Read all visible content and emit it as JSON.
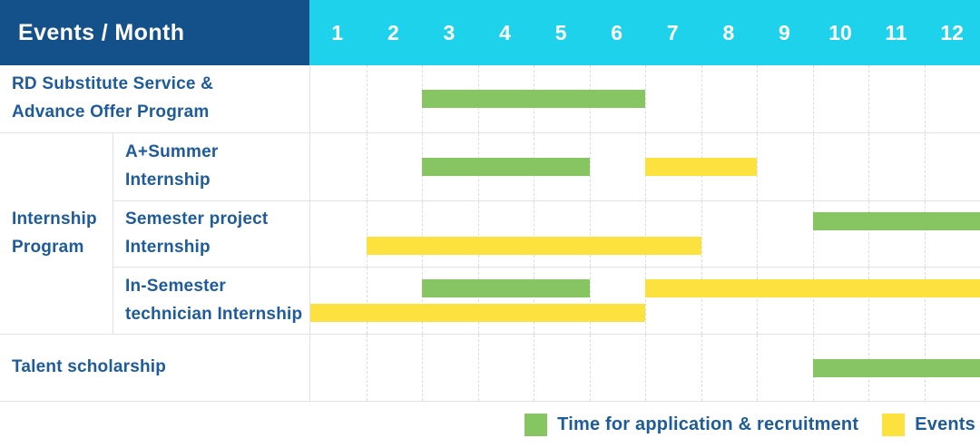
{
  "table": {
    "header": {
      "label": "Events / Month",
      "months": [
        "1",
        "2",
        "3",
        "4",
        "5",
        "6",
        "7",
        "8",
        "9",
        "10",
        "11",
        "12"
      ]
    },
    "rows": [
      {
        "id": "rd-substitute-service",
        "label_lines": [
          "RD Substitute Service &",
          "Advance Offer Program"
        ],
        "lines": [
          [
            {
              "type": "application",
              "start_month": 3,
              "end_month": 6
            }
          ]
        ]
      },
      {
        "id": "internship-program",
        "group_label_lines": [
          "Internship",
          "Program"
        ],
        "children": [
          {
            "id": "a-plus-summer-internship",
            "label_lines": [
              "A+Summer",
              "Internship"
            ],
            "lines": [
              [
                {
                  "type": "application",
                  "start_month": 3,
                  "end_month": 5
                },
                {
                  "type": "event",
                  "start_month": 7,
                  "end_month": 8
                }
              ]
            ]
          },
          {
            "id": "semester-project-internship",
            "label_lines": [
              "Semester project",
              "Internship"
            ],
            "lines": [
              [
                {
                  "type": "application",
                  "start_month": 10,
                  "end_month": 12
                }
              ],
              [
                {
                  "type": "event",
                  "start_month": 2,
                  "end_month": 7
                }
              ]
            ]
          },
          {
            "id": "in-semester-technician-internship",
            "label_lines": [
              "In-Semester",
              "technician Internship"
            ],
            "lines": [
              [
                {
                  "type": "application",
                  "start_month": 3,
                  "end_month": 5
                },
                {
                  "type": "event",
                  "start_month": 7,
                  "end_month": 12
                }
              ],
              [
                {
                  "type": "event",
                  "start_month": 1,
                  "end_month": 6
                }
              ]
            ]
          }
        ]
      },
      {
        "id": "talent-scholarship",
        "label_lines": [
          "Talent scholarship"
        ],
        "lines": [
          [
            {
              "type": "application",
              "start_month": 10,
              "end_month": 12
            }
          ]
        ]
      }
    ]
  },
  "legend": {
    "items": [
      {
        "type": "application",
        "label": "Time for application & recruitment",
        "color": "#87c563"
      },
      {
        "type": "event",
        "label": "Events",
        "color": "#fde23f"
      }
    ]
  },
  "colors": {
    "header_bg": "#14518a",
    "months_bg": "#1ed2ec",
    "header_text": "#ffffff",
    "label_text": "#1d5b9b",
    "grid_line": "#dcdcdc",
    "row_border": "#e2e2e2",
    "application": "#87c563",
    "event": "#fde23f"
  },
  "chart_data": {
    "type": "bar",
    "subtype": "gantt-timeline",
    "title": "Events / Month",
    "x": [
      1,
      2,
      3,
      4,
      5,
      6,
      7,
      8,
      9,
      10,
      11,
      12
    ],
    "xlabel": "Month",
    "xlim": [
      1,
      12
    ],
    "grid": true,
    "legend_position": "bottom-right",
    "legend": {
      "application": "Time for application & recruitment",
      "event": "Events"
    },
    "tasks": [
      {
        "name": "RD Substitute Service & Advance Offer Program",
        "group": null,
        "bars": [
          {
            "kind": "application",
            "from_month": 3,
            "to_month": 6
          }
        ]
      },
      {
        "name": "A+Summer Internship",
        "group": "Internship Program",
        "bars": [
          {
            "kind": "application",
            "from_month": 3,
            "to_month": 5
          },
          {
            "kind": "event",
            "from_month": 7,
            "to_month": 8
          }
        ]
      },
      {
        "name": "Semester project Internship",
        "group": "Internship Program",
        "bars": [
          {
            "kind": "application",
            "from_month": 10,
            "to_month": 12
          },
          {
            "kind": "event",
            "from_month": 2,
            "to_month": 7
          }
        ]
      },
      {
        "name": "In-Semester technician Internship",
        "group": "Internship Program",
        "bars": [
          {
            "kind": "application",
            "from_month": 3,
            "to_month": 5
          },
          {
            "kind": "event",
            "from_month": 7,
            "to_month": 12
          },
          {
            "kind": "event",
            "from_month": 1,
            "to_month": 6
          }
        ]
      },
      {
        "name": "Talent scholarship",
        "group": null,
        "bars": [
          {
            "kind": "application",
            "from_month": 10,
            "to_month": 12
          }
        ]
      }
    ]
  }
}
